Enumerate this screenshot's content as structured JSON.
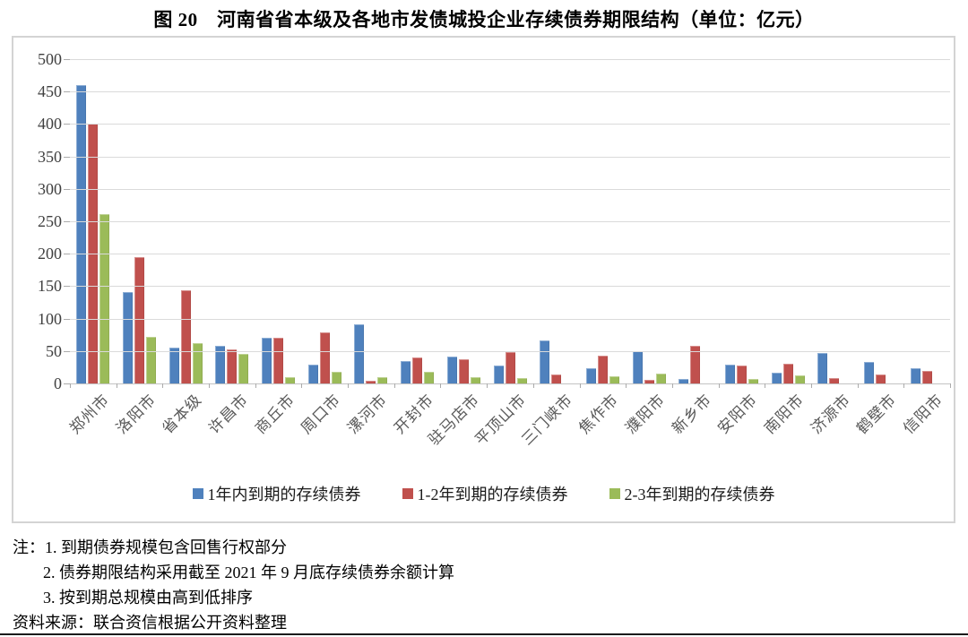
{
  "title": "图 20　河南省省本级及各地市发债城投企业存续债券期限结构（单位：亿元）",
  "chart_data": {
    "type": "bar",
    "title": "图 20　河南省省本级及各地市发债城投企业存续债券期限结构（单位：亿元）",
    "unit": "亿元",
    "categories": [
      "郑州市",
      "洛阳市",
      "省本级",
      "许昌市",
      "商丘市",
      "周口市",
      "漯河市",
      "开封市",
      "驻马店市",
      "平顶山市",
      "三门峡市",
      "焦作市",
      "濮阳市",
      "新乡市",
      "安阳市",
      "南阳市",
      "济源市",
      "鹤壁市",
      "信阳市"
    ],
    "series": [
      {
        "name": "1年内到期的存续债券",
        "color": "#4F81BD",
        "values": [
          460,
          141,
          55,
          58,
          70,
          29,
          91,
          35,
          42,
          27,
          67,
          24,
          50,
          7,
          29,
          16,
          47,
          33,
          23
        ]
      },
      {
        "name": "1-2年到期的存续债券",
        "color": "#C0504D",
        "values": [
          400,
          195,
          144,
          52,
          70,
          79,
          4,
          40,
          38,
          49,
          14,
          43,
          5,
          58,
          27,
          31,
          8,
          14,
          20
        ]
      },
      {
        "name": "2-3年到期的存续债券",
        "color": "#9BBB59",
        "values": [
          261,
          72,
          62,
          45,
          10,
          18,
          10,
          18,
          9,
          8,
          0,
          11,
          15,
          0,
          7,
          12,
          0,
          0,
          0
        ]
      }
    ],
    "ylim": [
      0,
      500
    ],
    "ytick_step": 50,
    "grid": true,
    "legend_position": "bottom",
    "sort_order": "total descending"
  },
  "notes": {
    "line1": "注：1. 到期债券规模包含回售行权部分",
    "line2": "2. 债券期限结构采用截至 2021 年 9 月底存续债券余额计算",
    "line3": "3. 按到期总规模由高到低排序",
    "source": "资料来源：联合资信根据公开资料整理"
  },
  "colors": {
    "series_blue": "#4F81BD",
    "series_red": "#C0504D",
    "series_green": "#9BBB59",
    "gridline": "#DADADA",
    "axis_line": "#C4C4C4",
    "tick": "#ABABAB",
    "frame_border": "#D4D4D4",
    "x_label_text": "#595959",
    "y_label_text": "#3F3F3F",
    "text": "#000000",
    "bottom_rule": "#1A1A1A"
  }
}
